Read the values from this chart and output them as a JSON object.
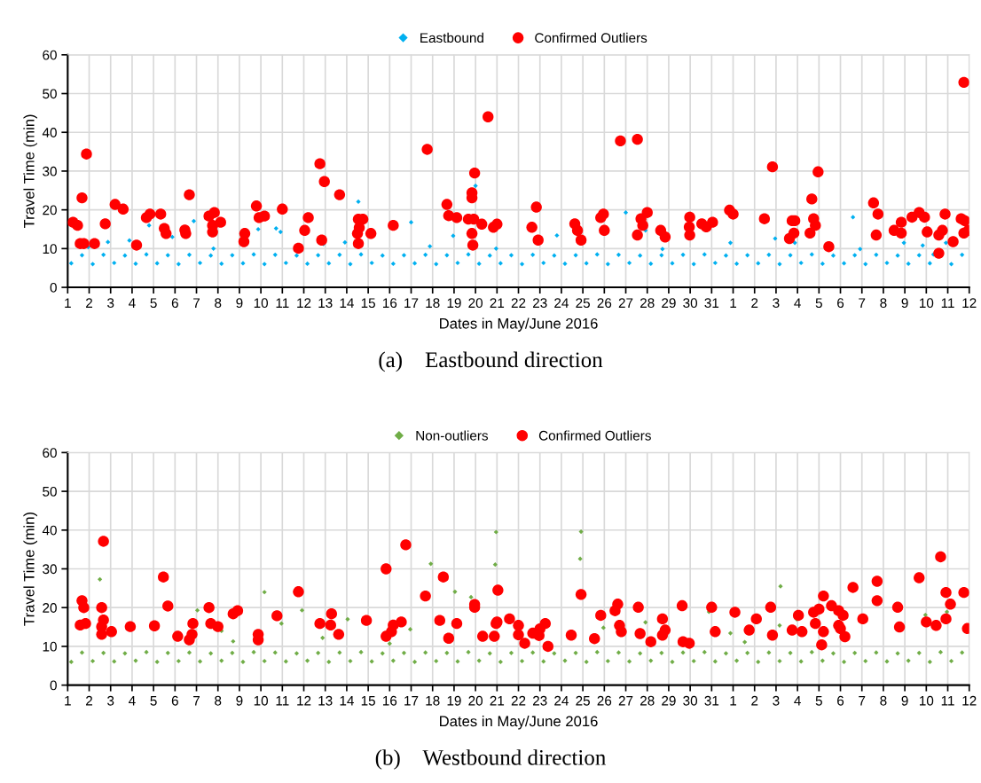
{
  "chart_data": [
    {
      "type": "scatter",
      "title": "(a)    Eastbound direction",
      "xlabel": "Dates in May/June 2016",
      "ylabel": "Travel Time (min)",
      "legend": "top",
      "grid": true,
      "xlim": [
        "2016-05-01",
        "2016-06-12"
      ],
      "ylim": [
        0,
        60
      ],
      "yticks": [
        0,
        10,
        20,
        30,
        40,
        50,
        60
      ],
      "xticks": [
        {
          "value": "2016-05-01",
          "label": "1"
        },
        {
          "value": "2016-05-02",
          "label": "2"
        },
        {
          "value": "2016-05-03",
          "label": "3"
        },
        {
          "value": "2016-05-04",
          "label": "4"
        },
        {
          "value": "2016-05-05",
          "label": "5"
        },
        {
          "value": "2016-05-06",
          "label": "6"
        },
        {
          "value": "2016-05-07",
          "label": "7"
        },
        {
          "value": "2016-05-08",
          "label": "8"
        },
        {
          "value": "2016-05-09",
          "label": "9"
        },
        {
          "value": "2016-05-10",
          "label": "10"
        },
        {
          "value": "2016-05-11",
          "label": "11"
        },
        {
          "value": "2016-05-12",
          "label": "12"
        },
        {
          "value": "2016-05-13",
          "label": "13"
        },
        {
          "value": "2016-05-14",
          "label": "14"
        },
        {
          "value": "2016-05-15",
          "label": "15"
        },
        {
          "value": "2016-05-16",
          "label": "16"
        },
        {
          "value": "2016-05-17",
          "label": "17"
        },
        {
          "value": "2016-05-18",
          "label": "18"
        },
        {
          "value": "2016-05-19",
          "label": "19"
        },
        {
          "value": "2016-05-20",
          "label": "20"
        },
        {
          "value": "2016-05-21",
          "label": "21"
        },
        {
          "value": "2016-05-22",
          "label": "22"
        },
        {
          "value": "2016-05-23",
          "label": "23"
        },
        {
          "value": "2016-05-24",
          "label": "24"
        },
        {
          "value": "2016-05-25",
          "label": "25"
        },
        {
          "value": "2016-05-26",
          "label": "26"
        },
        {
          "value": "2016-05-27",
          "label": "27"
        },
        {
          "value": "2016-05-28",
          "label": "28"
        },
        {
          "value": "2016-05-29",
          "label": "29"
        },
        {
          "value": "2016-05-30",
          "label": "30"
        },
        {
          "value": "2016-05-31",
          "label": "31"
        },
        {
          "value": "2016-06-01",
          "label": "1"
        },
        {
          "value": "2016-06-02",
          "label": "2"
        },
        {
          "value": "2016-06-03",
          "label": "3"
        },
        {
          "value": "2016-06-04",
          "label": "4"
        },
        {
          "value": "2016-06-05",
          "label": "5"
        },
        {
          "value": "2016-06-06",
          "label": "6"
        },
        {
          "value": "2016-06-07",
          "label": "7"
        },
        {
          "value": "2016-06-08",
          "label": "8"
        },
        {
          "value": "2016-06-09",
          "label": "9"
        },
        {
          "value": "2016-06-10",
          "label": "10"
        },
        {
          "value": "2016-06-11",
          "label": "11"
        },
        {
          "value": "2016-06-12",
          "label": "12"
        }
      ],
      "series": [
        {
          "name": "Eastbound",
          "color": "#00b0f0",
          "marker": "diamond",
          "x": [
            "2016-05-01T04:00",
            "2016-05-01T16:00",
            "2016-05-02T04:00",
            "2016-05-02T16:00",
            "2016-05-03T04:00",
            "2016-05-03T16:00",
            "2016-05-04T04:00",
            "2016-05-04T16:00",
            "2016-05-05T04:00",
            "2016-05-05T16:00",
            "2016-05-06T04:00",
            "2016-05-06T16:00",
            "2016-05-07T04:00",
            "2016-05-07T16:00",
            "2016-05-08T04:00",
            "2016-05-08T16:00",
            "2016-05-09T04:00",
            "2016-05-09T16:00",
            "2016-05-10T04:00",
            "2016-05-10T16:00",
            "2016-05-11T04:00",
            "2016-05-11T16:00",
            "2016-05-12T04:00",
            "2016-05-12T16:00",
            "2016-05-13T04:00",
            "2016-05-13T16:00",
            "2016-05-14T04:00",
            "2016-05-14T16:00",
            "2016-05-15T04:00",
            "2016-05-15T16:00",
            "2016-05-16T04:00",
            "2016-05-16T16:00",
            "2016-05-17T04:00",
            "2016-05-17T16:00",
            "2016-05-18T04:00",
            "2016-05-18T16:00",
            "2016-05-19T04:00",
            "2016-05-19T16:00",
            "2016-05-20T04:00",
            "2016-05-20T16:00",
            "2016-05-21T04:00",
            "2016-05-21T16:00",
            "2016-05-22T04:00",
            "2016-05-22T16:00",
            "2016-05-23T04:00",
            "2016-05-23T16:00",
            "2016-05-24T04:00",
            "2016-05-24T16:00",
            "2016-05-25T04:00",
            "2016-05-25T16:00",
            "2016-05-26T04:00",
            "2016-05-26T16:00",
            "2016-05-27T04:00",
            "2016-05-27T16:00",
            "2016-05-28T04:00",
            "2016-05-28T16:00",
            "2016-05-29T04:00",
            "2016-05-29T16:00",
            "2016-05-30T04:00",
            "2016-05-30T16:00",
            "2016-05-31T04:00",
            "2016-05-31T16:00",
            "2016-06-01T04:00",
            "2016-06-01T16:00",
            "2016-06-02T04:00",
            "2016-06-02T16:00",
            "2016-06-03T04:00",
            "2016-06-03T16:00",
            "2016-06-04T04:00",
            "2016-06-04T16:00",
            "2016-06-05T04:00",
            "2016-06-05T16:00",
            "2016-06-06T04:00",
            "2016-06-06T16:00",
            "2016-06-07T04:00",
            "2016-06-07T16:00",
            "2016-06-08T04:00",
            "2016-06-08T16:00",
            "2016-06-09T04:00",
            "2016-06-09T16:00",
            "2016-06-10T04:00",
            "2016-06-10T08:00",
            "2016-06-11T04:00",
            "2016-06-11T16:00",
            "2016-05-01T23:00",
            "2016-05-02T21:00",
            "2016-05-03T21:00",
            "2016-05-04T19:00",
            "2016-05-05T21:00",
            "2016-05-06T21:00",
            "2016-05-07T19:00",
            "2016-05-09T21:00",
            "2016-05-10T17:00",
            "2016-05-10T22:00",
            "2016-05-12T22:00",
            "2016-05-13T22:00",
            "2016-05-14T13:00",
            "2016-05-17T00:00",
            "2016-05-17T21:00",
            "2016-05-18T23:00",
            "2016-05-20T00:00",
            "2016-05-20T23:00",
            "2016-05-23T19:00",
            "2016-05-24T20:00",
            "2016-05-25T21:00",
            "2016-05-27T00:00",
            "2016-05-27T22:00",
            "2016-05-28T17:00",
            "2016-05-31T21:00",
            "2016-06-02T23:00",
            "2016-06-03T21:00",
            "2016-06-06T14:00",
            "2016-06-06T22:00",
            "2016-06-08T23:00",
            "2016-06-09T20:00",
            "2016-06-10T22:00"
          ],
          "values": [
            6.2,
            8.3,
            6.0,
            8.4,
            6.3,
            8.2,
            6.1,
            8.5,
            6.2,
            8.3,
            6.0,
            8.4,
            6.3,
            8.2,
            6.1,
            8.3,
            6.2,
            8.5,
            6.0,
            8.4,
            6.3,
            8.2,
            6.1,
            8.3,
            6.2,
            8.4,
            6.0,
            8.5,
            6.3,
            8.2,
            6.1,
            8.3,
            6.2,
            8.4,
            6.0,
            8.3,
            6.3,
            8.5,
            6.1,
            8.2,
            6.2,
            8.3,
            6.0,
            8.4,
            6.3,
            8.2,
            6.1,
            8.3,
            6.2,
            8.5,
            6.0,
            8.4,
            6.3,
            8.2,
            6.1,
            8.3,
            6.2,
            8.4,
            6.0,
            8.5,
            6.3,
            8.2,
            6.1,
            8.3,
            6.2,
            8.4,
            6.0,
            8.3,
            6.3,
            8.5,
            6.1,
            8.2,
            6.2,
            8.3,
            6.0,
            8.4,
            6.3,
            8.2,
            6.1,
            8.3,
            6.2,
            8.5,
            6.0,
            8.4,
            10.4,
            11.7,
            12.1,
            16.0,
            13.0,
            17.1,
            10.0,
            15.0,
            15.2,
            14.3,
            11.2,
            11.6,
            22.1,
            16.8,
            10.6,
            13.3,
            26.2,
            10.0,
            13.4,
            null,
            null,
            19.3,
            14.7,
            9.9,
            11.5,
            12.6,
            11.5,
            18.1,
            9.9,
            11.5,
            10.8,
            11.5
          ]
        },
        {
          "name": "Confirmed Outliers",
          "color": "#ff0000",
          "marker": "circle",
          "x": [
            "2016-05-01T06:00",
            "2016-05-01T11:00",
            "2016-05-01T16:00",
            "2016-05-01T21:00",
            "2016-05-01T14:00",
            "2016-05-01T18:00",
            "2016-05-02T06:00",
            "2016-05-02T18:00",
            "2016-05-03T05:00",
            "2016-05-03T14:00",
            "2016-05-04T05:00",
            "2016-05-04T16:00",
            "2016-05-04T20:00",
            "2016-05-05T08:00",
            "2016-05-05T12:00",
            "2016-05-05T14:00",
            "2016-05-06T11:00",
            "2016-05-06T12:00",
            "2016-05-06T16:00",
            "2016-05-07T14:00",
            "2016-05-07T20:00",
            "2016-05-07T18:00",
            "2016-05-07T18:00",
            "2016-05-08T03:00",
            "2016-05-09T05:00",
            "2016-05-09T06:00",
            "2016-05-09T19:00",
            "2016-05-09T22:00",
            "2016-05-10T04:00",
            "2016-05-11T00:00",
            "2016-05-11T18:00",
            "2016-05-12T01:00",
            "2016-05-12T05:00",
            "2016-05-12T18:00",
            "2016-05-12T20:00",
            "2016-05-12T23:00",
            "2016-05-13T16:00",
            "2016-05-14T13:00",
            "2016-05-14T12:00",
            "2016-05-14T14:00",
            "2016-05-14T13:00",
            "2016-05-14T18:00",
            "2016-05-15T03:00",
            "2016-05-16T04:00",
            "2016-05-17T18:00",
            "2016-05-18T16:00",
            "2016-05-18T18:00",
            "2016-05-19T03:00",
            "2016-05-19T16:00",
            "2016-05-19T22:00",
            "2016-05-19T20:00",
            "2016-05-19T20:00",
            "2016-05-19T23:00",
            "2016-05-19T20:00",
            "2016-05-19T21:00",
            "2016-05-20T07:00",
            "2016-05-20T14:00",
            "2016-05-20T20:00",
            "2016-05-21T00:00",
            "2016-05-22T15:00",
            "2016-05-22T20:00",
            "2016-05-22T22:00",
            "2016-05-24T15:00",
            "2016-05-24T18:00",
            "2016-05-24T22:00",
            "2016-05-25T20:00",
            "2016-05-25T23:00",
            "2016-05-26T00:00",
            "2016-05-26T18:00",
            "2016-05-27T13:00",
            "2016-05-27T13:00",
            "2016-05-27T17:00",
            "2016-05-27T19:00",
            "2016-05-28T00:00",
            "2016-05-28T15:00",
            "2016-05-28T20:00",
            "2016-05-29T23:30",
            "2016-05-29T23:00",
            "2016-05-29T23:30",
            "2016-05-30T13:00",
            "2016-05-30T18:00",
            "2016-05-31T01:00",
            "2016-05-31T20:00",
            "2016-06-01T00:00",
            "2016-06-02T11:00",
            "2016-06-02T20:00",
            "2016-06-03T15:00",
            "2016-06-03T20:00",
            "2016-06-03T18:00",
            "2016-06-03T21:00",
            "2016-06-04T16:00",
            "2016-06-04T18:00",
            "2016-06-04T20:00",
            "2016-06-04T14:00",
            "2016-06-04T23:00",
            "2016-06-05T11:00",
            "2016-06-07T13:00",
            "2016-06-07T18:00",
            "2016-06-07T16:00",
            "2016-06-08T12:00",
            "2016-06-08T20:00",
            "2016-06-08T20:00",
            "2016-06-09T08:00",
            "2016-06-09T16:00",
            "2016-06-09T22:00",
            "2016-06-10T01:00",
            "2016-06-10T14:00",
            "2016-06-10T18:00",
            "2016-06-10T14:00",
            "2016-06-10T21:00",
            "2016-06-11T06:00",
            "2016-06-11T15:00",
            "2016-06-11T19:00",
            "2016-06-11T18:00",
            "2016-06-11T23:00",
            "2016-06-11T18:00"
          ],
          "values": [
            16.8,
            16.0,
            23.1,
            34.4,
            11.3,
            11.3,
            11.3,
            16.4,
            21.4,
            20.2,
            10.9,
            18.0,
            18.9,
            18.9,
            15.2,
            13.9,
            14.8,
            13.9,
            23.9,
            18.4,
            19.3,
            16.0,
            14.3,
            16.8,
            11.8,
            13.9,
            21.0,
            18.0,
            18.4,
            20.2,
            10.1,
            14.7,
            18.0,
            31.9,
            12.2,
            27.3,
            23.9,
            11.3,
            13.9,
            15.4,
            17.6,
            17.6,
            13.9,
            16.0,
            35.6,
            21.4,
            18.5,
            18.0,
            17.6,
            17.6,
            23.1,
            24.4,
            29.5,
            13.9,
            10.9,
            16.3,
            44.0,
            15.5,
            16.3,
            15.5,
            20.7,
            12.2,
            16.4,
            14.7,
            12.2,
            18.0,
            18.9,
            14.7,
            37.8,
            38.2,
            13.5,
            17.7,
            16.0,
            19.3,
            14.7,
            13.0,
            18.1,
            15.6,
            13.5,
            16.4,
            15.6,
            16.8,
            19.9,
            18.9,
            17.7,
            31.1,
            12.6,
            14.0,
            17.2,
            17.2,
            22.8,
            17.7,
            16.0,
            14.0,
            29.8,
            10.5,
            21.8,
            18.9,
            13.5,
            14.7,
            16.8,
            14.0,
            18.1,
            19.3,
            18.1,
            14.3,
            13.5,
            14.7,
            8.8,
            18.9,
            11.8,
            17.7,
            17.2,
            14.0,
            14.7,
            52.9
          ]
        }
      ]
    },
    {
      "type": "scatter",
      "title": "(b)    Westbound direction",
      "xlabel": "Dates in May/June 2016",
      "ylabel": "Travel Time (min)",
      "legend": "top",
      "grid": true,
      "xlim": [
        "2016-05-01",
        "2016-06-12"
      ],
      "ylim": [
        0,
        60
      ],
      "yticks": [
        0,
        10,
        20,
        30,
        40,
        50,
        60
      ],
      "xticks": [
        {
          "value": "2016-05-01",
          "label": "1"
        },
        {
          "value": "2016-05-02",
          "label": "2"
        },
        {
          "value": "2016-05-03",
          "label": "3"
        },
        {
          "value": "2016-05-04",
          "label": "4"
        },
        {
          "value": "2016-05-05",
          "label": "5"
        },
        {
          "value": "2016-05-06",
          "label": "6"
        },
        {
          "value": "2016-05-07",
          "label": "7"
        },
        {
          "value": "2016-05-08",
          "label": "8"
        },
        {
          "value": "2016-05-09",
          "label": "9"
        },
        {
          "value": "2016-05-10",
          "label": "10"
        },
        {
          "value": "2016-05-11",
          "label": "11"
        },
        {
          "value": "2016-05-12",
          "label": "12"
        },
        {
          "value": "2016-05-13",
          "label": "13"
        },
        {
          "value": "2016-05-14",
          "label": "14"
        },
        {
          "value": "2016-05-15",
          "label": "15"
        },
        {
          "value": "2016-05-16",
          "label": "16"
        },
        {
          "value": "2016-05-17",
          "label": "17"
        },
        {
          "value": "2016-05-18",
          "label": "18"
        },
        {
          "value": "2016-05-19",
          "label": "19"
        },
        {
          "value": "2016-05-20",
          "label": "20"
        },
        {
          "value": "2016-05-21",
          "label": "21"
        },
        {
          "value": "2016-05-22",
          "label": "22"
        },
        {
          "value": "2016-05-23",
          "label": "23"
        },
        {
          "value": "2016-05-24",
          "label": "24"
        },
        {
          "value": "2016-05-25",
          "label": "25"
        },
        {
          "value": "2016-05-26",
          "label": "26"
        },
        {
          "value": "2016-05-27",
          "label": "27"
        },
        {
          "value": "2016-05-28",
          "label": "28"
        },
        {
          "value": "2016-05-29",
          "label": "29"
        },
        {
          "value": "2016-05-30",
          "label": "30"
        },
        {
          "value": "2016-05-31",
          "label": "31"
        },
        {
          "value": "2016-06-01",
          "label": "1"
        },
        {
          "value": "2016-06-02",
          "label": "2"
        },
        {
          "value": "2016-06-03",
          "label": "3"
        },
        {
          "value": "2016-06-04",
          "label": "4"
        },
        {
          "value": "2016-06-05",
          "label": "5"
        },
        {
          "value": "2016-06-06",
          "label": "6"
        },
        {
          "value": "2016-06-07",
          "label": "7"
        },
        {
          "value": "2016-06-08",
          "label": "8"
        },
        {
          "value": "2016-06-09",
          "label": "9"
        },
        {
          "value": "2016-06-10",
          "label": "10"
        },
        {
          "value": "2016-06-11",
          "label": "11"
        },
        {
          "value": "2016-06-12",
          "label": "12"
        }
      ],
      "series": [
        {
          "name": "Non-outliers",
          "color": "#70ad47",
          "marker": "diamond",
          "x": [
            "2016-05-01T04:00",
            "2016-05-01T16:00",
            "2016-05-02T04:00",
            "2016-05-02T16:00",
            "2016-05-03T04:00",
            "2016-05-03T16:00",
            "2016-05-04T04:00",
            "2016-05-04T16:00",
            "2016-05-05T04:00",
            "2016-05-05T16:00",
            "2016-05-06T04:00",
            "2016-05-06T16:00",
            "2016-05-07T04:00",
            "2016-05-07T16:00",
            "2016-05-08T04:00",
            "2016-05-08T16:00",
            "2016-05-09T04:00",
            "2016-05-09T16:00",
            "2016-05-10T04:00",
            "2016-05-10T16:00",
            "2016-05-11T04:00",
            "2016-05-11T16:00",
            "2016-05-12T04:00",
            "2016-05-12T16:00",
            "2016-05-13T04:00",
            "2016-05-13T16:00",
            "2016-05-14T04:00",
            "2016-05-14T16:00",
            "2016-05-15T04:00",
            "2016-05-15T16:00",
            "2016-05-16T04:00",
            "2016-05-16T16:00",
            "2016-05-17T04:00",
            "2016-05-17T16:00",
            "2016-05-18T04:00",
            "2016-05-18T16:00",
            "2016-05-19T04:00",
            "2016-05-19T16:00",
            "2016-05-20T04:00",
            "2016-05-20T16:00",
            "2016-05-21T04:00",
            "2016-05-21T16:00",
            "2016-05-22T04:00",
            "2016-05-22T16:00",
            "2016-05-23T04:00",
            "2016-05-23T16:00",
            "2016-05-24T04:00",
            "2016-05-24T16:00",
            "2016-05-25T04:00",
            "2016-05-25T16:00",
            "2016-05-26T04:00",
            "2016-05-26T16:00",
            "2016-05-27T04:00",
            "2016-05-27T16:00",
            "2016-05-28T04:00",
            "2016-05-28T16:00",
            "2016-05-29T04:00",
            "2016-05-29T16:00",
            "2016-05-30T04:00",
            "2016-05-30T16:00",
            "2016-05-31T04:00",
            "2016-05-31T16:00",
            "2016-06-01T04:00",
            "2016-06-01T16:00",
            "2016-06-02T04:00",
            "2016-06-02T16:00",
            "2016-06-03T04:00",
            "2016-06-03T16:00",
            "2016-06-04T04:00",
            "2016-06-04T16:00",
            "2016-06-05T04:00",
            "2016-06-05T16:00",
            "2016-06-06T04:00",
            "2016-06-06T16:00",
            "2016-06-07T04:00",
            "2016-06-07T16:00",
            "2016-06-08T04:00",
            "2016-06-08T16:00",
            "2016-06-09T04:00",
            "2016-06-09T16:00",
            "2016-06-10T04:00",
            "2016-06-10T16:00",
            "2016-06-11T04:00",
            "2016-06-11T16:00",
            "2016-05-02T12:00",
            "2016-05-07T01:00",
            "2016-05-08T04:00",
            "2016-05-08T17:00",
            "2016-05-10T04:00",
            "2016-05-10T23:00",
            "2016-05-11T22:00",
            "2016-05-12T21:00",
            "2016-05-14T01:00",
            "2016-05-16T00:00",
            "2016-05-16T23:00",
            "2016-05-17T22:00",
            "2016-05-19T01:00",
            "2016-05-19T19:00",
            "2016-05-20T23:00",
            "2016-05-20T22:00",
            "2016-05-24T22:00",
            "2016-05-24T21:00",
            "2016-05-25T23:00",
            "2016-05-27T22:00",
            "2016-05-30T21:00",
            "2016-05-31T21:00",
            "2016-06-01T13:00",
            "2016-06-03T05:00",
            "2016-06-03T04:00",
            "2016-06-03T23:00",
            "2016-06-09T23:00",
            "2016-06-10T23:00"
          ],
          "values": [
            6.0,
            8.4,
            6.2,
            8.3,
            6.1,
            8.2,
            6.3,
            8.5,
            6.0,
            8.3,
            6.2,
            8.4,
            6.1,
            8.2,
            6.3,
            8.3,
            6.0,
            8.5,
            6.2,
            8.4,
            6.1,
            8.2,
            6.3,
            8.3,
            6.0,
            8.4,
            6.2,
            8.5,
            6.1,
            8.2,
            6.3,
            8.3,
            6.0,
            8.4,
            6.2,
            8.3,
            6.1,
            8.5,
            6.3,
            8.2,
            6.0,
            8.3,
            6.2,
            8.4,
            6.1,
            8.2,
            6.3,
            8.3,
            6.0,
            8.5,
            6.2,
            8.4,
            6.1,
            8.2,
            6.3,
            8.3,
            6.0,
            8.4,
            6.2,
            8.5,
            6.1,
            8.2,
            6.3,
            8.3,
            6.0,
            8.4,
            6.2,
            8.3,
            6.1,
            8.5,
            6.3,
            8.2,
            6.0,
            8.3,
            6.2,
            8.4,
            6.1,
            8.2,
            6.3,
            8.3,
            6.0,
            8.5,
            6.2,
            8.4,
            27.3,
            19.3,
            14.0,
            11.3,
            24.0,
            15.9,
            19.3,
            12.2,
            17.0,
            10.7,
            14.4,
            31.3,
            24.1,
            22.7,
            39.5,
            31.1,
            39.6,
            32.6,
            14.8,
            16.2,
            18.9,
            13.4,
            11.1,
            25.5,
            15.4,
            17.0,
            18.1,
            18.9
          ]
        },
        {
          "name": "Confirmed Outliers",
          "color": "#ff0000",
          "marker": "circle",
          "x": [
            "2016-05-01T16:00",
            "2016-05-01T18:00",
            "2016-05-01T14:00",
            "2016-05-01T20:00",
            "2016-05-02T16:00",
            "2016-05-02T14:00",
            "2016-05-02T16:00",
            "2016-05-02T14:00",
            "2016-05-02T14:00",
            "2016-05-03T01:00",
            "2016-05-03T22:00",
            "2016-05-05T01:00",
            "2016-05-05T11:00",
            "2016-05-05T16:00",
            "2016-05-06T03:00",
            "2016-05-06T16:00",
            "2016-05-06T19:00",
            "2016-05-06T20:00",
            "2016-05-07T14:00",
            "2016-05-07T16:00",
            "2016-05-08T00:00",
            "2016-05-08T17:00",
            "2016-05-08T22:00",
            "2016-05-09T21:00",
            "2016-05-09T21:00",
            "2016-05-10T18:00",
            "2016-05-11T18:00",
            "2016-05-12T18:00",
            "2016-05-13T06:00",
            "2016-05-13T07:00",
            "2016-05-13T15:00",
            "2016-05-14T22:00",
            "2016-05-15T20:00",
            "2016-05-16T18:00",
            "2016-05-15T20:00",
            "2016-05-16T02:00",
            "2016-05-16T04:00",
            "2016-05-16T13:00",
            "2016-05-17T16:00",
            "2016-05-18T12:00",
            "2016-05-18T08:00",
            "2016-05-18T18:00",
            "2016-05-19T03:00",
            "2016-05-19T23:00",
            "2016-05-19T23:00",
            "2016-05-20T08:00",
            "2016-05-20T21:00",
            "2016-05-21T01:00",
            "2016-05-20T23:00",
            "2016-05-21T00:00",
            "2016-05-21T14:00",
            "2016-05-22T00:00",
            "2016-05-22T00:00",
            "2016-05-22T07:00",
            "2016-05-22T16:00",
            "2016-05-22T23:00",
            "2016-05-23T00:00",
            "2016-05-23T06:00",
            "2016-05-23T09:00",
            "2016-05-24T11:00",
            "2016-05-24T22:00",
            "2016-05-25T13:00",
            "2016-05-25T20:00",
            "2016-05-26T12:00",
            "2016-05-26T15:00",
            "2016-05-26T17:00",
            "2016-05-26T19:00",
            "2016-05-27T14:00",
            "2016-05-27T16:00",
            "2016-05-28T04:00",
            "2016-05-28T17:00",
            "2016-05-28T17:00",
            "2016-05-28T20:00",
            "2016-05-29T15:00",
            "2016-05-29T16:00",
            "2016-05-29T23:00",
            "2016-05-31T00:00",
            "2016-05-31T04:00",
            "2016-06-01T02:00",
            "2016-06-01T18:00",
            "2016-06-02T02:00",
            "2016-06-02T18:00",
            "2016-06-02T20:00",
            "2016-06-03T18:00",
            "2016-06-04T01:00",
            "2016-06-04T05:00",
            "2016-06-04T18:00",
            "2016-06-05T00:00",
            "2016-06-05T05:00",
            "2016-06-04T20:00",
            "2016-06-05T05:00",
            "2016-06-05T03:00",
            "2016-06-05T14:00",
            "2016-06-05T22:00",
            "2016-06-06T03:00",
            "2016-06-05T22:00",
            "2016-06-06T00:00",
            "2016-06-06T05:00",
            "2016-06-06T14:00",
            "2016-06-07T01:00",
            "2016-06-07T17:00",
            "2016-06-07T17:00",
            "2016-06-08T16:00",
            "2016-06-08T18:00",
            "2016-06-09T16:00",
            "2016-06-10T00:00",
            "2016-06-10T11:00",
            "2016-06-10T16:00",
            "2016-06-10T22:00",
            "2016-06-11T03:00",
            "2016-06-10T22:00",
            "2016-06-11T18:00",
            "2016-06-11T22:00"
          ],
          "values": [
            21.8,
            20.0,
            15.5,
            15.9,
            37.1,
            20.0,
            16.8,
            15.1,
            13.1,
            13.8,
            15.1,
            15.3,
            27.9,
            20.4,
            12.6,
            11.7,
            13.1,
            15.9,
            20.0,
            15.9,
            15.1,
            18.4,
            19.2,
            13.1,
            11.7,
            17.9,
            24.1,
            15.9,
            15.5,
            18.4,
            13.1,
            16.7,
            30.0,
            36.2,
            12.6,
            13.8,
            15.5,
            16.3,
            23.0,
            27.9,
            16.7,
            12.1,
            15.9,
            20.8,
            20.1,
            12.6,
            12.6,
            24.5,
            15.9,
            16.3,
            17.1,
            15.4,
            13.0,
            10.8,
            13.4,
            12.8,
            14.5,
            15.9,
            10.0,
            12.9,
            23.4,
            12.0,
            18.0,
            19.2,
            20.9,
            15.4,
            13.8,
            20.1,
            13.3,
            11.2,
            17.1,
            12.9,
            14.2,
            20.5,
            11.2,
            10.8,
            20.1,
            13.8,
            18.8,
            14.2,
            17.1,
            20.1,
            12.9,
            14.2,
            18.0,
            13.8,
            18.8,
            19.6,
            23.0,
            15.9,
            13.8,
            10.4,
            20.5,
            19.2,
            18.0,
            15.4,
            14.6,
            12.5,
            25.2,
            17.1,
            26.8,
            21.8,
            20.1,
            15.0,
            27.7,
            16.3,
            15.4,
            33.1,
            23.9,
            20.9,
            17.1,
            23.9,
            14.6
          ]
        }
      ]
    }
  ]
}
